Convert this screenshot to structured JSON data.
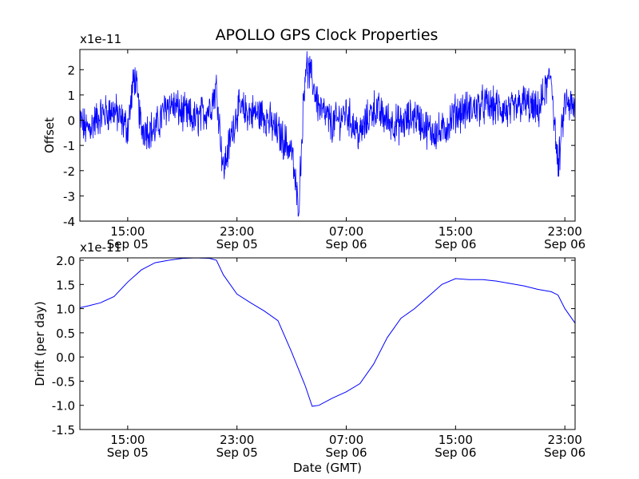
{
  "title": "APOLLO GPS Clock Properties",
  "chart_data": [
    {
      "type": "line",
      "title": "APOLLO GPS Clock Properties",
      "ylabel": "Offset",
      "xlabel": "",
      "y_exponent_label": "x1e-11",
      "ylim": [
        -4,
        2.8
      ],
      "y_ticks": [
        -4,
        -3,
        -2,
        -1,
        0,
        1,
        2
      ],
      "y_tick_labels": [
        "-4",
        "-3",
        "-2",
        "-1",
        "0",
        "1",
        "2"
      ],
      "xlim": [
        "Sep 05 11:30",
        "Sep 06 23:45"
      ],
      "x_ticks": [
        {
          "time": "Sep 05 15:00",
          "lines": [
            "15:00",
            "Sep 05"
          ]
        },
        {
          "time": "Sep 05 23:00",
          "lines": [
            "23:00",
            "Sep 05"
          ]
        },
        {
          "time": "Sep 06 07:00",
          "lines": [
            "07:00",
            "Sep 06"
          ]
        },
        {
          "time": "Sep 06 15:00",
          "lines": [
            "15:00",
            "Sep 06"
          ]
        },
        {
          "time": "Sep 06 23:00",
          "lines": [
            "23:00",
            "Sep 06"
          ]
        }
      ],
      "color": "#0000ff",
      "grid": false,
      "note": "noisy high-frequency signal; envelope points below",
      "x": [
        "Sep 05 11:30",
        "Sep 05 12:00",
        "Sep 05 13:00",
        "Sep 05 14:00",
        "Sep 05 14:30",
        "Sep 05 15:00",
        "Sep 05 15:30",
        "Sep 05 16:00",
        "Sep 05 17:00",
        "Sep 05 18:00",
        "Sep 05 19:00",
        "Sep 05 20:00",
        "Sep 05 21:00",
        "Sep 05 21:30",
        "Sep 05 22:00",
        "Sep 05 23:00",
        "Sep 06 00:00",
        "Sep 06 01:00",
        "Sep 06 02:00",
        "Sep 06 03:00",
        "Sep 06 03:30",
        "Sep 06 04:00",
        "Sep 06 04:30",
        "Sep 06 05:00",
        "Sep 06 06:00",
        "Sep 06 07:00",
        "Sep 06 08:00",
        "Sep 06 09:00",
        "Sep 06 10:00",
        "Sep 06 11:00",
        "Sep 06 12:00",
        "Sep 06 13:00",
        "Sep 06 14:00",
        "Sep 06 15:00",
        "Sep 06 16:00",
        "Sep 06 17:00",
        "Sep 06 18:00",
        "Sep 06 19:00",
        "Sep 06 20:00",
        "Sep 06 21:00",
        "Sep 06 22:00",
        "Sep 06 22:30",
        "Sep 06 23:00",
        "Sep 06 23:45"
      ],
      "values": [
        0.0,
        -0.4,
        0.2,
        0.4,
        0.0,
        -0.3,
        1.8,
        -0.3,
        -0.4,
        0.7,
        0.3,
        0.0,
        0.5,
        1.3,
        -2.0,
        0.4,
        0.3,
        0.2,
        -0.5,
        -1.2,
        -3.6,
        2.2,
        1.6,
        0.5,
        -0.2,
        0.3,
        -0.6,
        0.5,
        0.0,
        -0.2,
        0.2,
        -0.4,
        -0.5,
        0.3,
        0.4,
        0.6,
        0.5,
        0.3,
        0.7,
        0.3,
        1.8,
        -2.0,
        0.7,
        0.4
      ]
    },
    {
      "type": "line",
      "title": "",
      "ylabel": "Drift (per day)",
      "xlabel": "Date (GMT)",
      "y_exponent_label": "x1e-11",
      "ylim": [
        -1.5,
        2.05
      ],
      "y_ticks": [
        -1.5,
        -1.0,
        -0.5,
        0.0,
        0.5,
        1.0,
        1.5,
        2.0
      ],
      "y_tick_labels": [
        "-1.5",
        "-1.0",
        "-0.5",
        "0.0",
        "0.5",
        "1.0",
        "1.5",
        "2.0"
      ],
      "xlim": [
        "Sep 05 11:30",
        "Sep 06 23:45"
      ],
      "x_ticks": [
        {
          "time": "Sep 05 15:00",
          "lines": [
            "15:00",
            "Sep 05"
          ]
        },
        {
          "time": "Sep 05 23:00",
          "lines": [
            "23:00",
            "Sep 05"
          ]
        },
        {
          "time": "Sep 06 07:00",
          "lines": [
            "07:00",
            "Sep 06"
          ]
        },
        {
          "time": "Sep 06 15:00",
          "lines": [
            "15:00",
            "Sep 06"
          ]
        },
        {
          "time": "Sep 06 23:00",
          "lines": [
            "23:00",
            "Sep 06"
          ]
        }
      ],
      "color": "#0000ff",
      "grid": false,
      "x": [
        "Sep 05 11:30",
        "Sep 05 12:00",
        "Sep 05 13:00",
        "Sep 05 14:00",
        "Sep 05 15:00",
        "Sep 05 16:00",
        "Sep 05 17:00",
        "Sep 05 18:00",
        "Sep 05 19:00",
        "Sep 05 20:00",
        "Sep 05 21:00",
        "Sep 05 21:30",
        "Sep 05 22:00",
        "Sep 05 23:00",
        "Sep 06 00:00",
        "Sep 06 01:00",
        "Sep 06 02:00",
        "Sep 06 03:00",
        "Sep 06 04:00",
        "Sep 06 04:30",
        "Sep 06 05:00",
        "Sep 06 06:00",
        "Sep 06 07:00",
        "Sep 06 08:00",
        "Sep 06 09:00",
        "Sep 06 10:00",
        "Sep 06 11:00",
        "Sep 06 12:00",
        "Sep 06 13:00",
        "Sep 06 14:00",
        "Sep 06 15:00",
        "Sep 06 16:00",
        "Sep 06 17:00",
        "Sep 06 18:00",
        "Sep 06 19:00",
        "Sep 06 20:00",
        "Sep 06 21:00",
        "Sep 06 22:00",
        "Sep 06 22:30",
        "Sep 06 23:00",
        "Sep 06 23:45"
      ],
      "values": [
        1.02,
        1.05,
        1.12,
        1.25,
        1.55,
        1.8,
        1.95,
        2.0,
        2.04,
        2.05,
        2.04,
        2.0,
        1.7,
        1.3,
        1.12,
        0.95,
        0.75,
        0.1,
        -0.6,
        -1.02,
        -1.0,
        -0.85,
        -0.72,
        -0.55,
        -0.15,
        0.4,
        0.8,
        1.0,
        1.25,
        1.5,
        1.62,
        1.6,
        1.6,
        1.57,
        1.52,
        1.47,
        1.4,
        1.35,
        1.28,
        1.0,
        0.7
      ]
    }
  ]
}
